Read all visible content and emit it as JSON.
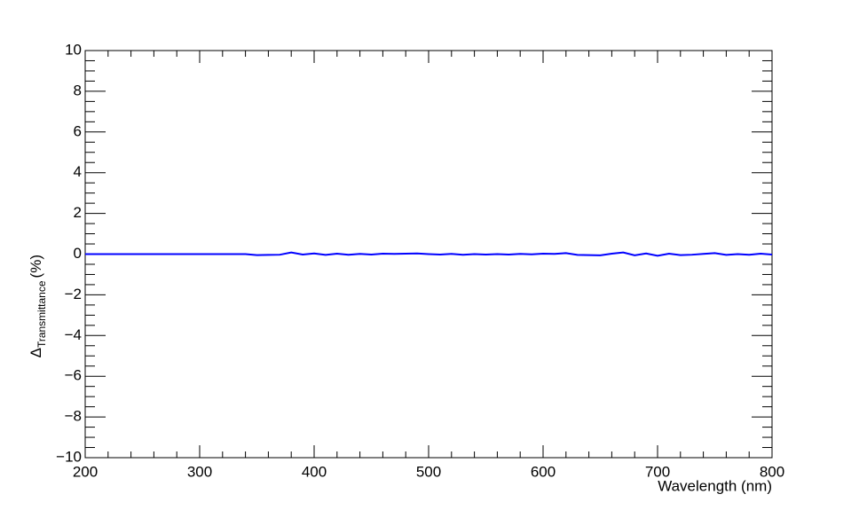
{
  "chart_data": {
    "type": "line",
    "xlabel": "Wavelength (nm)",
    "ylabel_main": "Δ",
    "ylabel_sub": "Transmittance",
    "ylabel_unit": "(%)",
    "x": [
      200,
      210,
      220,
      230,
      240,
      250,
      260,
      270,
      280,
      290,
      300,
      310,
      320,
      330,
      340,
      350,
      360,
      370,
      380,
      390,
      400,
      410,
      420,
      430,
      440,
      450,
      460,
      470,
      480,
      490,
      500,
      510,
      520,
      530,
      540,
      550,
      560,
      570,
      580,
      590,
      600,
      610,
      620,
      630,
      640,
      650,
      660,
      670,
      680,
      690,
      700,
      710,
      720,
      730,
      740,
      750,
      760,
      770,
      780,
      790,
      800
    ],
    "series": [
      {
        "color": "#0000ff",
        "values": [
          0,
          0,
          0,
          0,
          0,
          0,
          0,
          0,
          0,
          0,
          0,
          0,
          0,
          0,
          0,
          -0.05,
          -0.04,
          -0.03,
          0.08,
          -0.02,
          0.03,
          -0.04,
          0.02,
          -0.03,
          0.01,
          -0.02,
          0.02,
          0.01,
          0.02,
          0.03,
          0,
          -0.02,
          0.01,
          -0.03,
          0,
          -0.02,
          0,
          -0.02,
          0.01,
          -0.01,
          0.02,
          0.01,
          0.05,
          -0.04,
          -0.05,
          -0.06,
          0.02,
          0.08,
          -0.06,
          0.03,
          -0.08,
          0.02,
          -0.05,
          -0.03,
          0.01,
          0.05,
          -0.04,
          0,
          -0.03,
          0.02,
          -0.02
        ]
      }
    ],
    "xlim": [
      200,
      800
    ],
    "xticks": [
      200,
      300,
      400,
      500,
      600,
      700,
      800
    ],
    "ylim": [
      -10,
      10
    ],
    "yticks": [
      {
        "value": -10,
        "label": "−10"
      },
      {
        "value": -8,
        "label": "−8"
      },
      {
        "value": -6,
        "label": "−6"
      },
      {
        "value": -4,
        "label": "−4"
      },
      {
        "value": -2,
        "label": "−2"
      },
      0,
      2,
      4,
      6,
      8,
      10
    ],
    "grid": false
  }
}
